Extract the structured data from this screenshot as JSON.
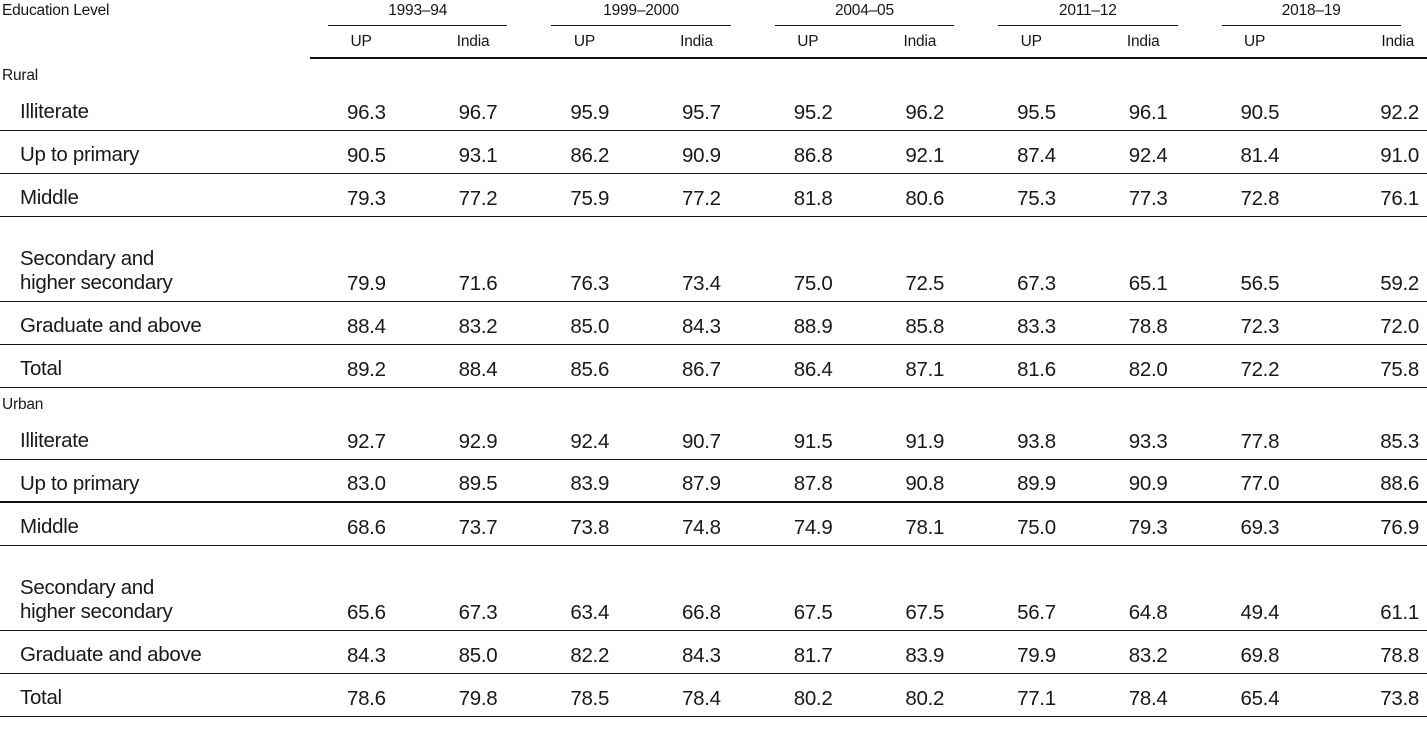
{
  "table": {
    "label_header": "Education Level",
    "year_groups": [
      "1993–94",
      "1999–2000",
      "2004–05",
      "2011–12",
      "2018–19"
    ],
    "sub_headers": [
      "UP",
      "India"
    ],
    "sections": [
      {
        "name": "Rural",
        "rows": [
          {
            "label": "Illiterate",
            "label2": "",
            "values": [
              "96.3",
              "96.7",
              "95.9",
              "95.7",
              "95.2",
              "96.2",
              "95.5",
              "96.1",
              "90.5",
              "92.2"
            ]
          },
          {
            "label": "Up to primary",
            "label2": "",
            "values": [
              "90.5",
              "93.1",
              "86.2",
              "90.9",
              "86.8",
              "92.1",
              "87.4",
              "92.4",
              "81.4",
              "91.0"
            ]
          },
          {
            "label": "Middle",
            "label2": "",
            "values": [
              "79.3",
              "77.2",
              "75.9",
              "77.2",
              "81.8",
              "80.6",
              "75.3",
              "77.3",
              "72.8",
              "76.1"
            ]
          },
          {
            "label": "Secondary and",
            "label2": "higher secondary",
            "values": [
              "79.9",
              "71.6",
              "76.3",
              "73.4",
              "75.0",
              "72.5",
              "67.3",
              "65.1",
              "56.5",
              "59.2"
            ]
          },
          {
            "label": "Graduate and above",
            "label2": "",
            "values": [
              "88.4",
              "83.2",
              "85.0",
              "84.3",
              "88.9",
              "85.8",
              "83.3",
              "78.8",
              "72.3",
              "72.0"
            ]
          },
          {
            "label": "Total",
            "label2": "",
            "values": [
              "89.2",
              "88.4",
              "85.6",
              "86.7",
              "86.4",
              "87.1",
              "81.6",
              "82.0",
              "72.2",
              "75.8"
            ]
          }
        ]
      },
      {
        "name": "Urban",
        "rows": [
          {
            "label": "Illiterate",
            "label2": "",
            "values": [
              "92.7",
              "92.9",
              "92.4",
              "90.7",
              "91.5",
              "91.9",
              "93.8",
              "93.3",
              "77.8",
              "85.3"
            ]
          },
          {
            "label": "Up to primary",
            "label2": "",
            "thick_border": true,
            "values": [
              "83.0",
              "89.5",
              "83.9",
              "87.9",
              "87.8",
              "90.8",
              "89.9",
              "90.9",
              "77.0",
              "88.6"
            ]
          },
          {
            "label": "Middle",
            "label2": "",
            "values": [
              "68.6",
              "73.7",
              "73.8",
              "74.8",
              "74.9",
              "78.1",
              "75.0",
              "79.3",
              "69.3",
              "76.9"
            ]
          },
          {
            "label": "Secondary and",
            "label2": "higher secondary",
            "values": [
              "65.6",
              "67.3",
              "63.4",
              "66.8",
              "67.5",
              "67.5",
              "56.7",
              "64.8",
              "49.4",
              "61.1"
            ]
          },
          {
            "label": "Graduate and above",
            "label2": "",
            "values": [
              "84.3",
              "85.0",
              "82.2",
              "84.3",
              "81.7",
              "83.9",
              "79.9",
              "83.2",
              "69.8",
              "78.8"
            ]
          },
          {
            "label": "Total",
            "label2": "",
            "values": [
              "78.6",
              "79.8",
              "78.5",
              "78.4",
              "80.2",
              "80.2",
              "77.1",
              "78.4",
              "65.4",
              "73.8"
            ]
          }
        ]
      }
    ]
  }
}
